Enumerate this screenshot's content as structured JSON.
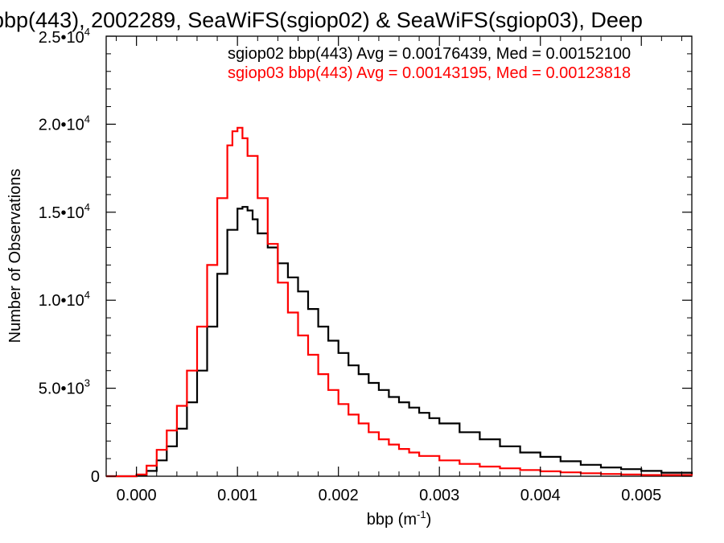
{
  "chart_data": {
    "type": "line",
    "title": "bbp(443), 2002289, SeaWiFS(sgiop02) & SeaWiFS(sgiop03), Deep",
    "xlabel": "bbp (m",
    "xlabel_sup": "-1",
    "xlabel_close": ")",
    "ylabel": "Number of Observations",
    "xlim": [
      -0.0003,
      0.0055
    ],
    "ylim": [
      0,
      25000
    ],
    "x_ticks": [
      {
        "value": 0.0,
        "label": "0.000"
      },
      {
        "value": 0.001,
        "label": "0.001"
      },
      {
        "value": 0.002,
        "label": "0.002"
      },
      {
        "value": 0.003,
        "label": "0.003"
      },
      {
        "value": 0.004,
        "label": "0.004"
      },
      {
        "value": 0.005,
        "label": "0.005"
      }
    ],
    "y_ticks": [
      {
        "value": 0,
        "mantissa": "0",
        "exp": ""
      },
      {
        "value": 5000,
        "mantissa": "5.0•10",
        "exp": "3"
      },
      {
        "value": 10000,
        "mantissa": "1.0•10",
        "exp": "4"
      },
      {
        "value": 15000,
        "mantissa": "1.5•10",
        "exp": "4"
      },
      {
        "value": 20000,
        "mantissa": "2.0•10",
        "exp": "4"
      },
      {
        "value": 25000,
        "mantissa": "2.5•10",
        "exp": "4"
      }
    ],
    "legend": [
      {
        "text": "sgiop02 bbp(443) Avg = 0.00176439, Med = 0.00152100",
        "color": "#000000"
      },
      {
        "text": "sgiop03 bbp(443) Avg = 0.00143195, Med = 0.00123818",
        "color": "#ff0000"
      }
    ],
    "series": [
      {
        "color": "#000000",
        "step": true,
        "x": [
          -0.0003,
          0.0,
          0.0001,
          0.0002,
          0.0003,
          0.0004,
          0.0005,
          0.0006,
          0.0007,
          0.0008,
          0.0009,
          0.001,
          0.00105,
          0.0011,
          0.00115,
          0.0012,
          0.0013,
          0.0014,
          0.0015,
          0.0016,
          0.0017,
          0.0018,
          0.0019,
          0.002,
          0.0021,
          0.0022,
          0.0023,
          0.0024,
          0.0025,
          0.0026,
          0.0027,
          0.0028,
          0.0029,
          0.003,
          0.0032,
          0.0034,
          0.0036,
          0.0038,
          0.004,
          0.0042,
          0.0044,
          0.0046,
          0.0048,
          0.005,
          0.0052,
          0.0055
        ],
        "y": [
          0,
          50,
          300,
          900,
          1700,
          2700,
          4200,
          6000,
          8500,
          11500,
          14000,
          15200,
          15300,
          15100,
          14600,
          13800,
          13000,
          12100,
          11300,
          10500,
          9500,
          8500,
          7700,
          7000,
          6300,
          5800,
          5300,
          4900,
          4500,
          4200,
          3900,
          3600,
          3300,
          3000,
          2500,
          2100,
          1700,
          1350,
          1100,
          850,
          650,
          500,
          400,
          300,
          200,
          100
        ]
      },
      {
        "color": "#ff0000",
        "step": true,
        "x": [
          -0.0003,
          0.0,
          0.0001,
          0.0002,
          0.0003,
          0.0004,
          0.0005,
          0.0006,
          0.0007,
          0.0008,
          0.0009,
          0.00095,
          0.001,
          0.00105,
          0.0011,
          0.0012,
          0.0013,
          0.0014,
          0.0015,
          0.0016,
          0.0017,
          0.0018,
          0.0019,
          0.002,
          0.0021,
          0.0022,
          0.0023,
          0.0024,
          0.0025,
          0.0026,
          0.0027,
          0.0028,
          0.003,
          0.0032,
          0.0034,
          0.0036,
          0.0038,
          0.004,
          0.0042,
          0.0044,
          0.0046,
          0.0048,
          0.005,
          0.0055
        ],
        "y": [
          0,
          100,
          600,
          1500,
          2600,
          4000,
          6000,
          8500,
          12000,
          15800,
          18800,
          19600,
          19800,
          19200,
          18200,
          15800,
          13200,
          11000,
          9300,
          8000,
          6900,
          5800,
          4900,
          4100,
          3500,
          3000,
          2500,
          2100,
          1800,
          1550,
          1350,
          1150,
          900,
          700,
          550,
          450,
          350,
          280,
          220,
          170,
          130,
          100,
          70,
          30
        ]
      }
    ]
  }
}
